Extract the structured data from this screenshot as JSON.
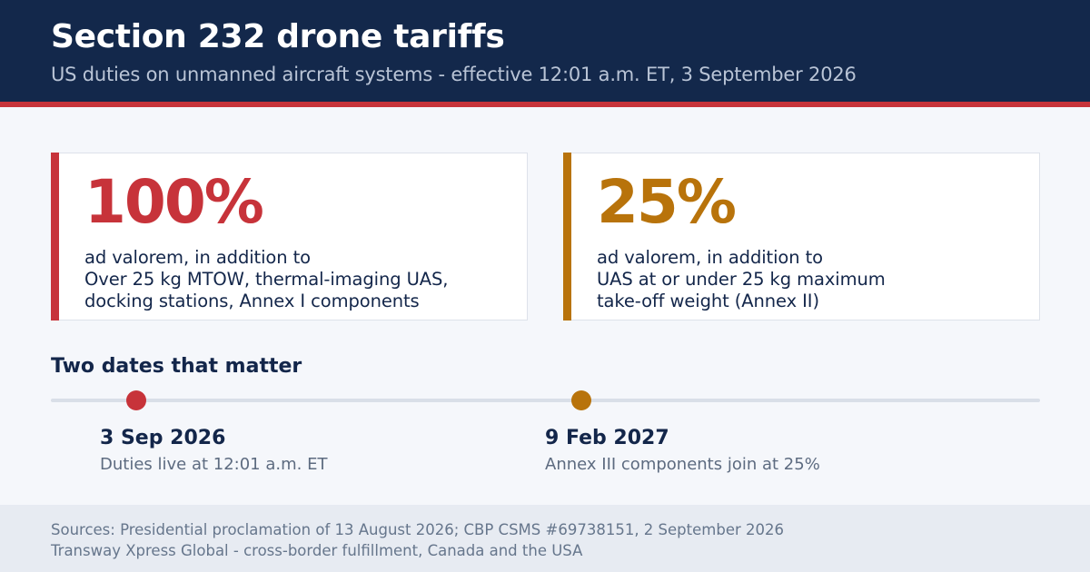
{
  "header": {
    "title": "Section 232 drone tariffs",
    "subtitle": "US duties on unmanned aircraft systems - effective 12:01 a.m. ET, 3 September 2026"
  },
  "cards": [
    {
      "rate": "100%",
      "lines": [
        "ad valorem, in addition to",
        "Over 25 kg MTOW, thermal-imaging UAS,",
        "docking stations, Annex I components"
      ],
      "accent_color": "#c7333a"
    },
    {
      "rate": "25%",
      "lines": [
        "ad valorem, in addition to",
        "UAS at or under 25 kg maximum",
        "take-off weight (Annex II)"
      ],
      "accent_color": "#b8730b"
    }
  ],
  "timeline": {
    "heading": "Two dates that matter",
    "events": [
      {
        "date": "3 Sep 2026",
        "description": "Duties live at 12:01 a.m. ET",
        "color": "#c7333a"
      },
      {
        "date": "9 Feb 2027",
        "description": "Annex III components join at 25%",
        "color": "#b8730b"
      }
    ]
  },
  "footer": {
    "sources": "Sources: Presidential proclamation of 13 August 2026; CBP CSMS #69738151, 2 September 2026",
    "company": "Transway Xpress Global - cross-border fulfillment, Canada and the USA"
  }
}
